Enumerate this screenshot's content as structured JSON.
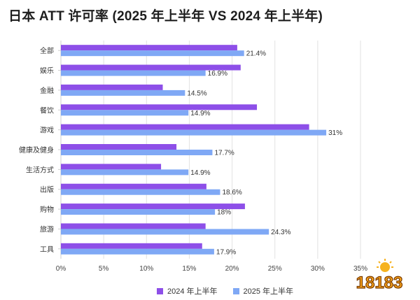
{
  "title": "日本 ATT 许可率 (2025 年上半年 VS 2024 年上半年)",
  "colors": {
    "series_2024": "#8d4fe8",
    "series_2025": "#7fa8f5",
    "grid": "#e2e2e2"
  },
  "logo_text": "18183",
  "chart_data": {
    "type": "bar",
    "orientation": "horizontal",
    "title": "日本 ATT 许可率 (2025 年上半年 VS 2024 年上半年)",
    "categories": [
      "全部",
      "娱乐",
      "金融",
      "餐饮",
      "游戏",
      "健康及健身",
      "生活方式",
      "出版",
      "购物",
      "旅游",
      "工具"
    ],
    "series": [
      {
        "name": "2024 年上半年",
        "values": [
          20.6,
          21.0,
          11.9,
          22.9,
          29.0,
          13.5,
          11.7,
          17.0,
          21.5,
          16.9,
          16.5
        ]
      },
      {
        "name": "2025 年上半年",
        "values": [
          21.4,
          16.9,
          14.5,
          14.9,
          31.0,
          17.7,
          14.9,
          18.6,
          18.0,
          24.3,
          17.9
        ]
      }
    ],
    "data_labels_2025": [
      "21.4%",
      "16.9%",
      "14.5%",
      "14.9%",
      "31%",
      "17.7%",
      "14.9%",
      "18.6%",
      "18%",
      "24.3%",
      "17.9%"
    ],
    "xlim": [
      0,
      35
    ],
    "xticks": [
      "0%",
      "5%",
      "10%",
      "15%",
      "20%",
      "25%",
      "30%",
      "35%"
    ],
    "xtick_values": [
      0,
      5,
      10,
      15,
      20,
      25,
      30,
      35
    ],
    "grid": "vertical",
    "legend_position": "bottom-center"
  }
}
